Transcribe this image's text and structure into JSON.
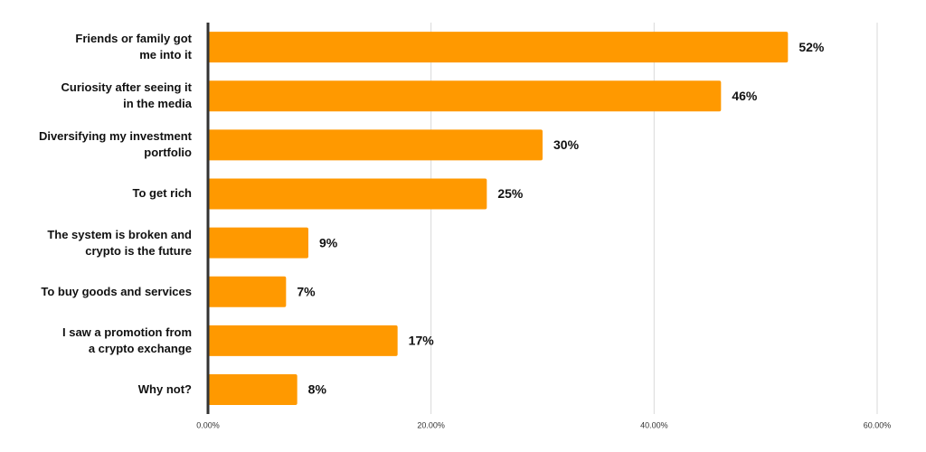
{
  "chart_data": {
    "type": "bar",
    "orientation": "horizontal",
    "categories": [
      "Friends or family got\nme into it",
      "Curiosity after seeing it\nin the media",
      "Diversifying my investment\nportfolio",
      "To get rich",
      "The system is broken and\ncrypto is the future",
      "To buy goods and services",
      "I saw a promotion from\na crypto exchange",
      "Why not?"
    ],
    "values": [
      52,
      46,
      30,
      25,
      9,
      7,
      17,
      8
    ],
    "value_labels": [
      "52%",
      "46%",
      "30%",
      "25%",
      "9%",
      "7%",
      "17%",
      "8%"
    ],
    "color": "#ff9900",
    "xlim": [
      0,
      60
    ],
    "xticks": [
      {
        "value": 0,
        "label": "0.00%"
      },
      {
        "value": 20,
        "label": "20.00%"
      },
      {
        "value": 40,
        "label": "40.00%"
      },
      {
        "value": 60,
        "label": "60.00%"
      }
    ],
    "grid": true
  }
}
